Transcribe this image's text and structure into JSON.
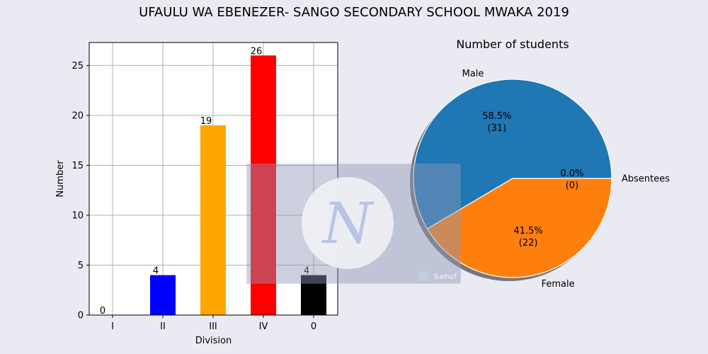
{
  "title": "UFAULU WA EBENEZER- SANGO SECONDARY SCHOOL MWAKA 2019",
  "chart_data": [
    {
      "type": "bar",
      "categories": [
        "I",
        "II",
        "III",
        "IV",
        "0"
      ],
      "values": [
        0,
        4,
        19,
        26,
        4
      ],
      "colors": [
        "#ffffff",
        "#0000ff",
        "#ffa500",
        "#ff0000",
        "#000000"
      ],
      "xlabel": "Division",
      "ylabel": "Number",
      "ylim": [
        0,
        27.3
      ],
      "yticks": [
        0,
        5,
        10,
        15,
        20,
        25
      ],
      "grid": true
    },
    {
      "type": "pie",
      "title": "Number of students",
      "labels": [
        "Male",
        "Female",
        "Absentees"
      ],
      "values": [
        31,
        22,
        0
      ],
      "percent_labels": [
        "58.5%",
        "41.5%",
        "0.0%"
      ],
      "count_labels": [
        "(31)",
        "(22)",
        "(0)"
      ],
      "colors": [
        "#1f77b4",
        "#ff7f0e",
        "#2ca02c"
      ],
      "shadow": true
    }
  ],
  "watermark": {
    "text": "Saruf"
  }
}
